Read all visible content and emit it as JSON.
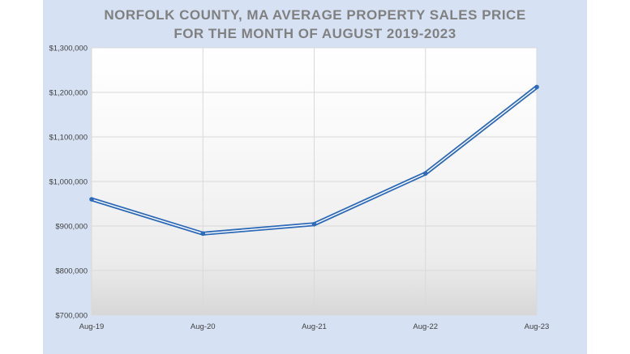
{
  "chart_data": {
    "type": "line",
    "title_line1": "NORFOLK COUNTY, MA AVERAGE PROPERTY SALES PRICE",
    "title_line2": "FOR THE MONTH OF AUGUST 2019-2023",
    "categories": [
      "Aug-19",
      "Aug-20",
      "Aug-21",
      "Aug-22",
      "Aug-23"
    ],
    "series": [
      {
        "values": [
          960000,
          883000,
          904000,
          1018000,
          1212000
        ]
      }
    ],
    "ylim": [
      700000,
      1300000
    ],
    "yticks": [
      700000,
      800000,
      900000,
      1000000,
      1100000,
      1200000,
      1300000
    ],
    "ytick_labels": [
      "$700,000",
      "$800,000",
      "$900,000",
      "$1,000,000",
      "$1,100,000",
      "$1,200,000",
      "$1,300,000"
    ],
    "grid": true,
    "line_color": "#2e6ab8"
  }
}
